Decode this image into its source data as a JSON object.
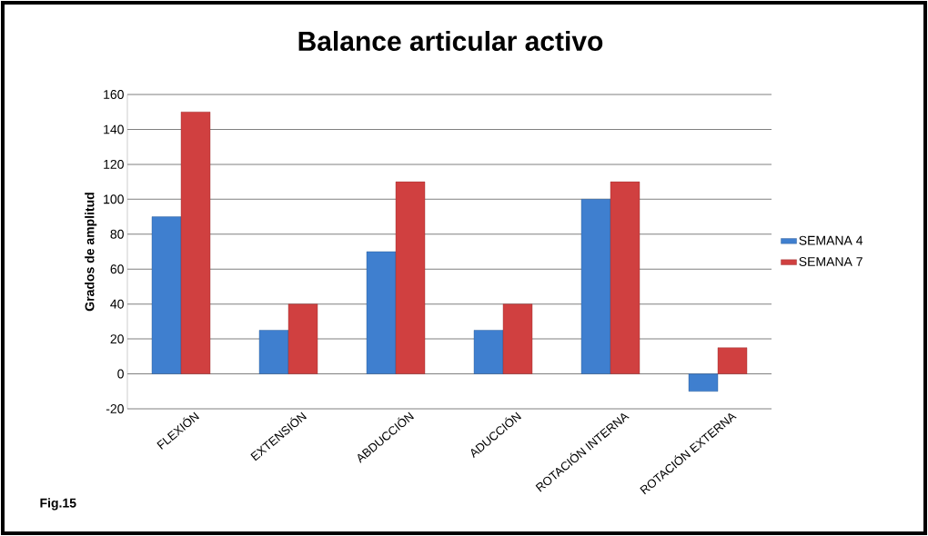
{
  "chart_data": {
    "type": "bar",
    "title": "Balance articular activo",
    "ylabel": "Grados de amplitud",
    "categories": [
      "FLEXIÓN",
      "EXTENSIÓN",
      "ABDUCCIÓN",
      "ADUCCIÓN",
      "ROTACIÓN INTERNA",
      "ROTACIÓN EXTERNA"
    ],
    "series": [
      {
        "name": "SEMANA 4",
        "color": "#3f7fcf",
        "values": [
          90,
          25,
          70,
          25,
          100,
          -10
        ]
      },
      {
        "name": "SEMANA 7",
        "color": "#d04040",
        "values": [
          150,
          40,
          110,
          40,
          110,
          15
        ]
      }
    ],
    "ylim": [
      -20,
      160
    ],
    "yticks": [
      -20,
      0,
      20,
      40,
      60,
      80,
      100,
      120,
      140,
      160
    ],
    "grid": "y",
    "legend": "right",
    "annotations": [
      "Fig.15"
    ]
  }
}
